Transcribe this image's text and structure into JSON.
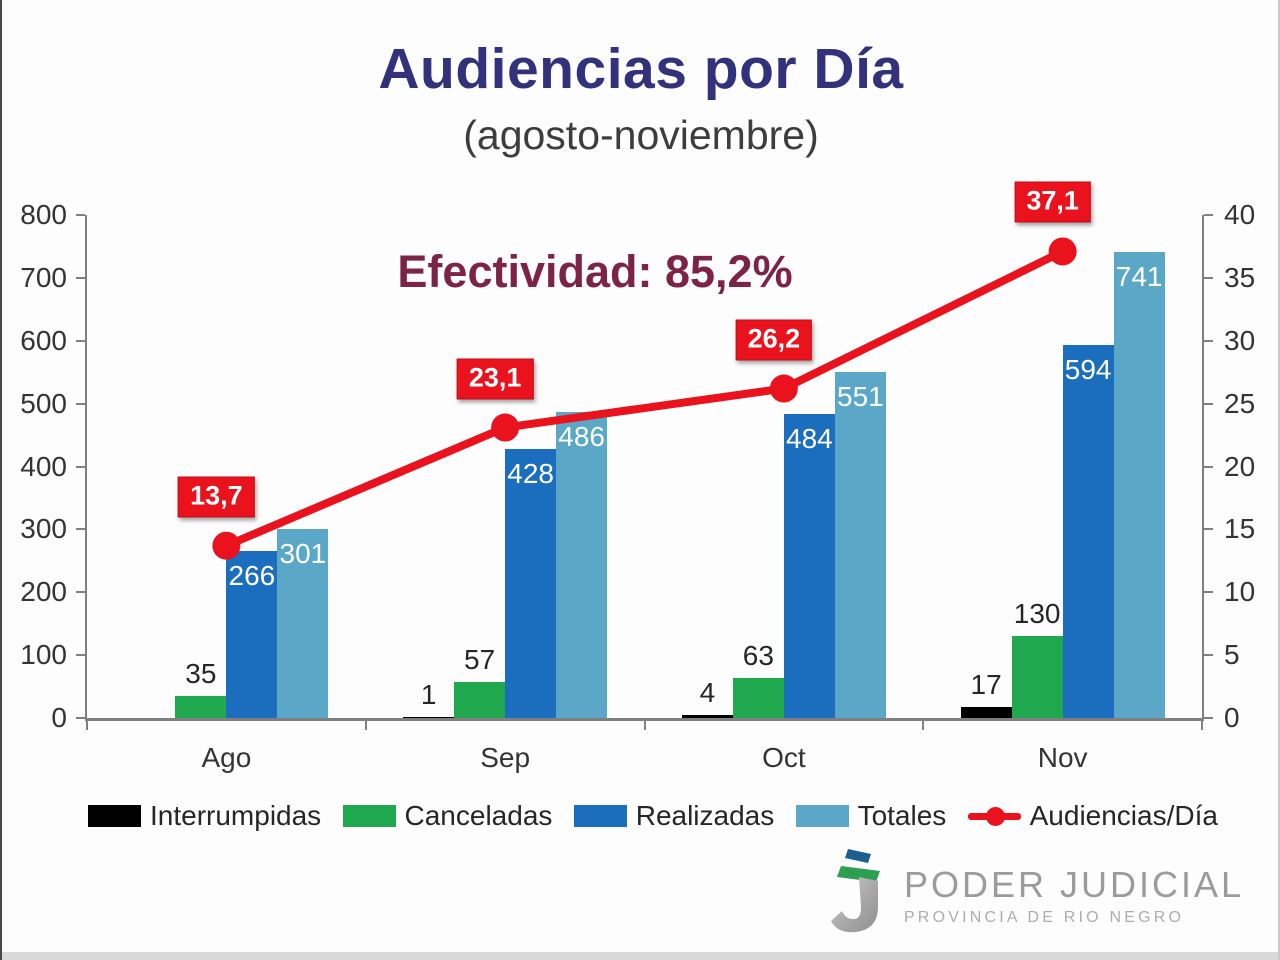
{
  "header": {
    "title": "Audiencias por Día",
    "subtitle": "(agosto-noviembre)"
  },
  "annotation": {
    "text": "Efectividad: 85,2%",
    "color": "#7d2348"
  },
  "chart_data": {
    "type": "bar",
    "subtype": "grouped bars with line overlay (dual axis)",
    "title": "Audiencias por Día",
    "subtitle": "(agosto-noviembre)",
    "categories": [
      "Ago",
      "Sep",
      "Oct",
      "Nov"
    ],
    "series": [
      {
        "name": "Interrumpidas",
        "type": "bar",
        "axis": "left",
        "color": "#000000",
        "values": [
          0,
          1,
          4,
          17
        ],
        "labels": [
          "",
          "1",
          "4",
          "17"
        ],
        "label_position": "outside"
      },
      {
        "name": "Canceladas",
        "type": "bar",
        "axis": "left",
        "color": "#1fa84d",
        "values": [
          35,
          57,
          63,
          130
        ],
        "labels": [
          "35",
          "57",
          "63",
          "130"
        ],
        "label_position": "outside"
      },
      {
        "name": "Realizadas",
        "type": "bar",
        "axis": "left",
        "color": "#1b6ebe",
        "values": [
          266,
          428,
          484,
          594
        ],
        "labels": [
          "266",
          "428",
          "484",
          "594"
        ],
        "label_position": "inside"
      },
      {
        "name": "Totales",
        "type": "bar",
        "axis": "left",
        "color": "#5ba7c8",
        "values": [
          301,
          486,
          551,
          741
        ],
        "labels": [
          "301",
          "486",
          "551",
          "741"
        ],
        "label_position": "inside"
      },
      {
        "name": "Audiencias/Día",
        "type": "line",
        "axis": "right",
        "color": "#e9121d",
        "values": [
          13.7,
          23.1,
          26.2,
          37.1
        ],
        "labels": [
          "13,7",
          "23,1",
          "26,2",
          "37,1"
        ],
        "label_position": "boxed"
      }
    ],
    "left_axis": {
      "min": 0,
      "max": 800,
      "step": 100,
      "ticks": [
        "0",
        "100",
        "200",
        "300",
        "400",
        "500",
        "600",
        "700",
        "800"
      ]
    },
    "right_axis": {
      "min": 0,
      "max": 40,
      "step": 5,
      "ticks": [
        "0",
        "5",
        "10",
        "15",
        "20",
        "25",
        "30",
        "35",
        "40"
      ]
    },
    "grid": false,
    "legend_position": "bottom",
    "annotation": "Efectividad: 85,2%"
  },
  "legend": {
    "items": [
      {
        "label": "Interrumpidas",
        "color": "#000000",
        "type": "bar"
      },
      {
        "label": "Canceladas",
        "color": "#1fa84d",
        "type": "bar"
      },
      {
        "label": "Realizadas",
        "color": "#1b6ebe",
        "type": "bar"
      },
      {
        "label": "Totales",
        "color": "#5ba7c8",
        "type": "bar"
      },
      {
        "label": "Audiencias/Día",
        "color": "#e9121d",
        "type": "line"
      }
    ]
  },
  "logo": {
    "line1": "PODER JUDICIAL",
    "line2": "PROVINCIA DE RIO NEGRO"
  }
}
